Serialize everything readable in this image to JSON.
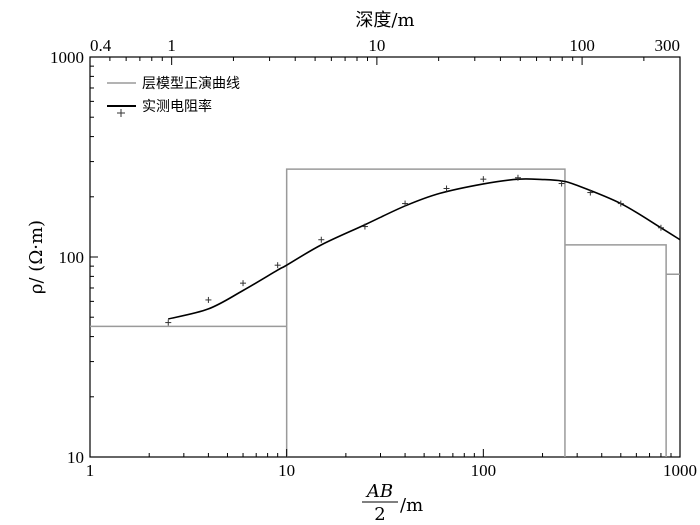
{
  "chart_data": {
    "type": "line",
    "x_scale": "log",
    "y_scale": "log",
    "xlim": [
      1,
      1000
    ],
    "ylim": [
      10,
      1000
    ],
    "x_ticks": [
      1,
      10,
      100,
      1000
    ],
    "x_tick_labels": [
      "1",
      "10",
      "100",
      "1000"
    ],
    "y_ticks": [
      10,
      100,
      1000
    ],
    "y_tick_labels": [
      "10",
      "100",
      "1000"
    ],
    "top_axis": {
      "label": "深度/m",
      "ticks": [
        0.4,
        1,
        10,
        100,
        300
      ],
      "tick_labels": [
        "0.4",
        "1",
        "10",
        "100",
        "300"
      ],
      "ab2_at_0_4": 1,
      "ab2_at_300": 1000
    },
    "xlabel": {
      "numerator": "AB",
      "denominator": "2",
      "unit": "/m"
    },
    "ylabel": "ρ/ (Ω·m)",
    "grid": false,
    "legend": {
      "placement": "top-left",
      "entries": [
        {
          "label": "层模型正演曲线",
          "style": "gray-line"
        },
        {
          "label": "实测电阻率",
          "style": "black-line-with-points"
        }
      ]
    },
    "colors": {
      "model": "#9a9a9a",
      "fit": "#000000",
      "points": "#333333"
    },
    "series": [
      {
        "name": "层模型正演曲线",
        "kind": "step",
        "segments": [
          {
            "x_from": 1,
            "x_to": 10,
            "y": 45
          },
          {
            "x_from": 10,
            "x_to": 260,
            "y": 275
          },
          {
            "x_from": 260,
            "x_to": 850,
            "y": 115
          },
          {
            "x_from": 850,
            "x_to": 1000,
            "y": 82
          }
        ]
      },
      {
        "name": "实测电阻率",
        "kind": "curve",
        "x": [
          2.5,
          4,
          6,
          9,
          10,
          15,
          25,
          40,
          60,
          100,
          150,
          200,
          250,
          300,
          500,
          800,
          1000
        ],
        "y": [
          49,
          55,
          68,
          86,
          91,
          115,
          145,
          180,
          208,
          232,
          245,
          244,
          240,
          228,
          185,
          140,
          122
        ]
      },
      {
        "name": "实测电阻率",
        "kind": "points",
        "x": [
          2.5,
          4,
          6,
          9,
          15,
          25,
          40,
          65,
          100,
          150,
          250,
          350,
          500,
          800
        ],
        "y": [
          47,
          61,
          74,
          91,
          122,
          142,
          185,
          220,
          245,
          249,
          233,
          210,
          185,
          140
        ]
      }
    ]
  }
}
